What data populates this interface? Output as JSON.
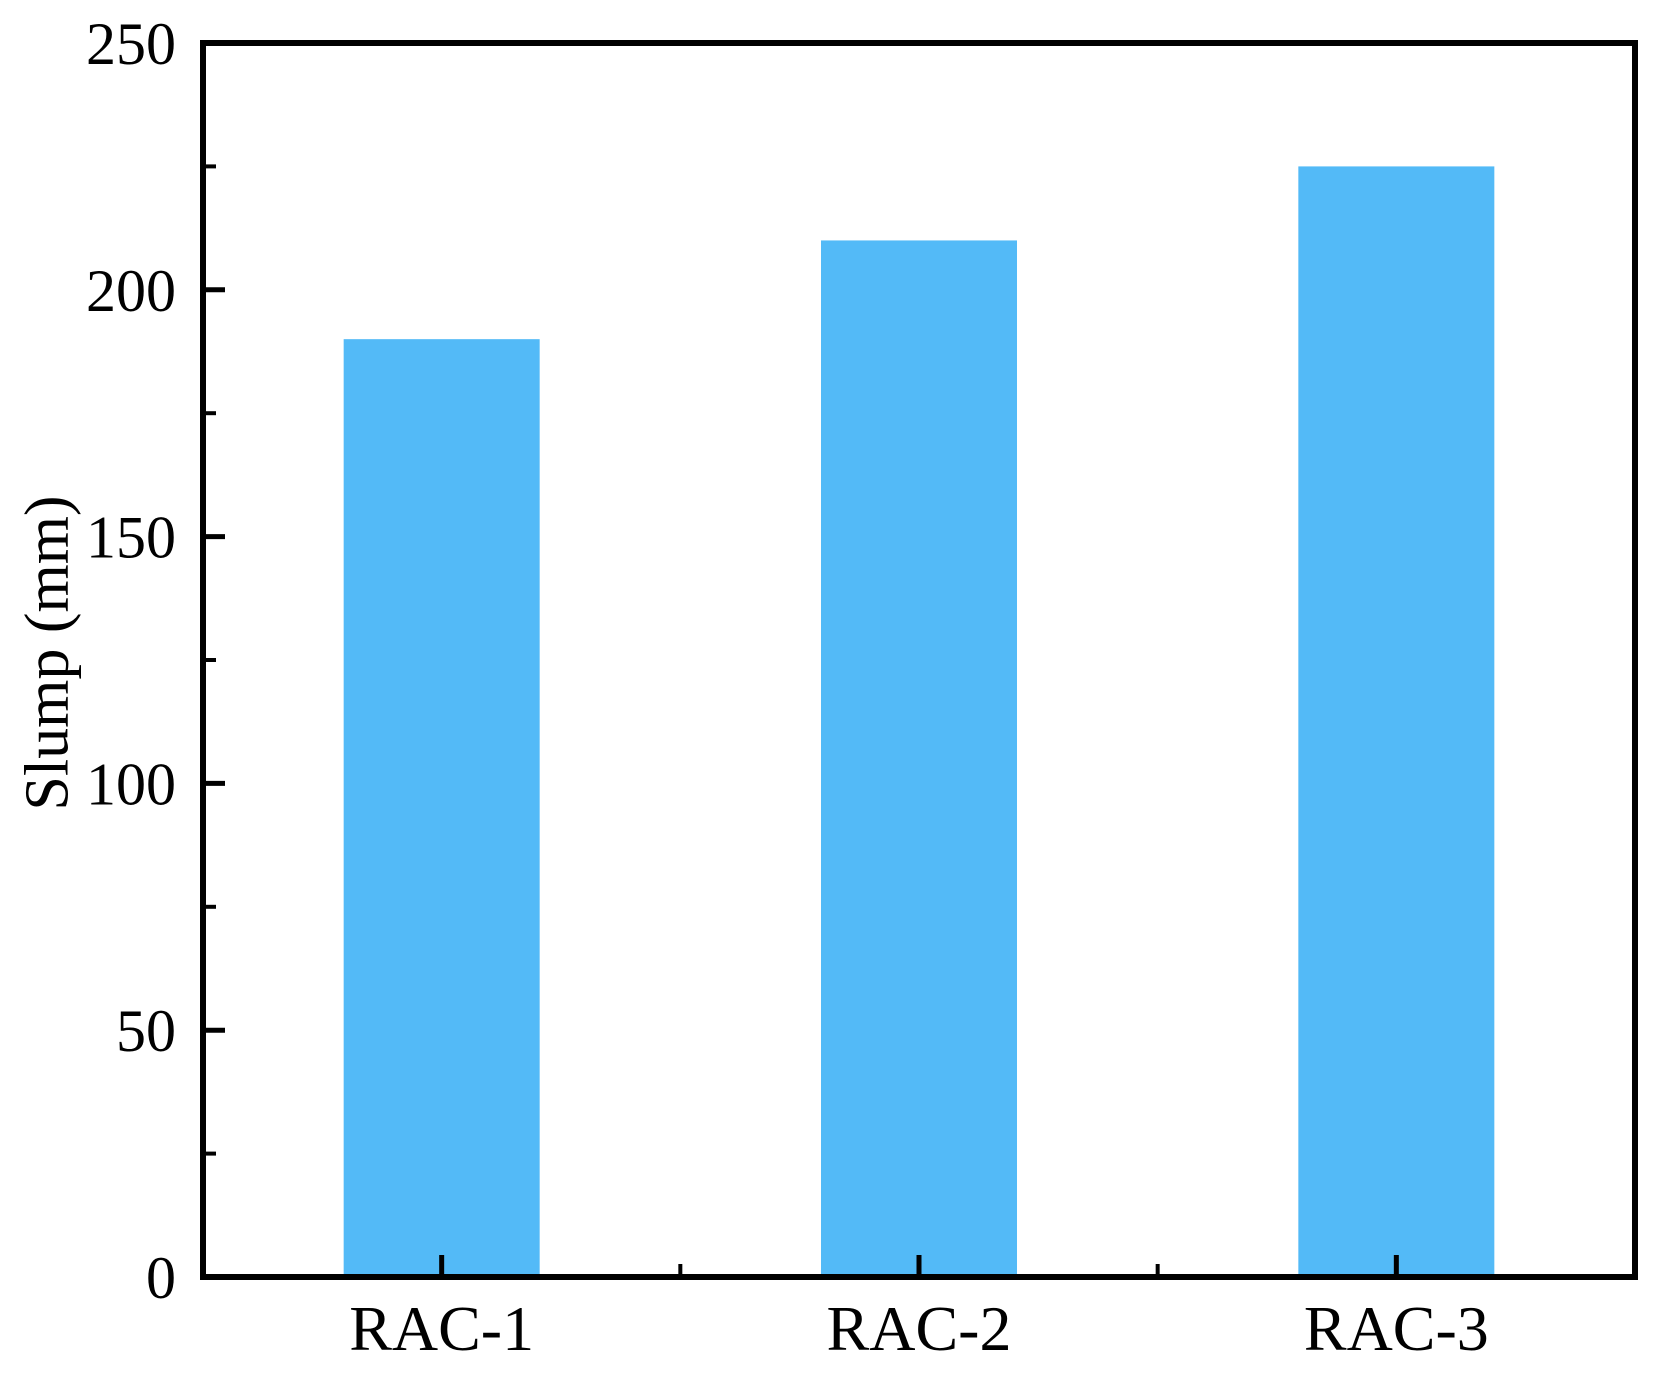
{
  "chart_data": {
    "type": "bar",
    "categories": [
      "RAC-1",
      "RAC-2",
      "RAC-3"
    ],
    "values": [
      190,
      210,
      225
    ],
    "title": "",
    "xlabel": "",
    "ylabel": "Slump (mm)",
    "ylim": [
      0,
      250
    ],
    "y_major_step": 50,
    "y_minor_step": 25,
    "y_tick_labels": [
      "0",
      "50",
      "100",
      "150",
      "200",
      "250"
    ],
    "grid": false,
    "legend": "none",
    "tick_direction": "in",
    "bar_color": "#53BAF7",
    "axis_color": "#000000",
    "text_color": "#000000",
    "background_color": "#FFFFFF"
  }
}
